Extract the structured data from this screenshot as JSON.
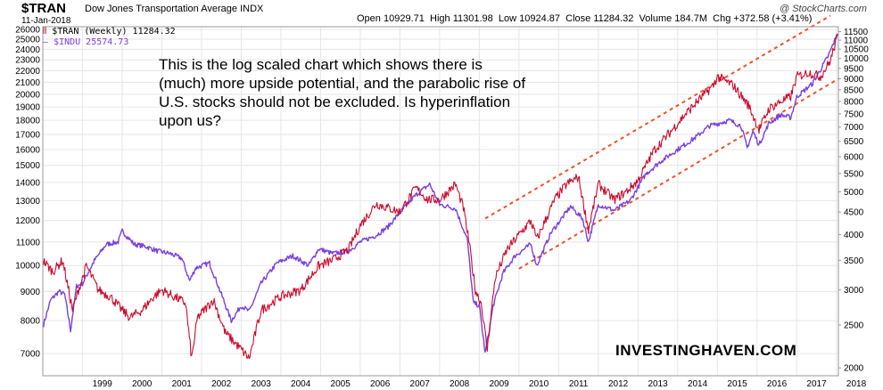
{
  "header": {
    "symbol": "$TRAN",
    "name": "Dow Jones Transportation Average INDX",
    "date": "11-Jan-2018",
    "quote": {
      "open_label": "Open",
      "open": "10929.71",
      "high_label": "High",
      "high": "11301.98",
      "low_label": "Low",
      "low": "10924.87",
      "close_label": "Close",
      "close": "11284.32",
      "volume_label": "Volume",
      "volume": "184.7M",
      "chg_label": "Chg",
      "chg": "+372.58 (+3.41%)"
    },
    "brand": "@ StockCharts.com"
  },
  "legend": {
    "tran": "$TRAN (Weekly) 11284.32",
    "indu": "$INDU 25574.73"
  },
  "annotation": "This is the log scaled chart which shows there is (much) more upside potential, and the parabolic rise of U.S. stocks should not be excluded. Is hyperinflation upon us?",
  "watermark": "INVESTINGHAVEN.COM",
  "colors": {
    "tran": "#cc0a2c",
    "indu": "#7a3fe0",
    "channel": "#ef5226",
    "grid": "#e6e6e6"
  },
  "chart_data": {
    "type": "line",
    "scale": "log",
    "grid": true,
    "x_ticks": [
      "1999",
      "2000",
      "2001",
      "2002",
      "2003",
      "2004",
      "2005",
      "2006",
      "2007",
      "2008",
      "2009",
      "2010",
      "2011",
      "2012",
      "2013",
      "2014",
      "2015",
      "2016",
      "2017",
      "2018"
    ],
    "xlim": [
      1998.0,
      2018.05
    ],
    "left_axis": {
      "ticks": [
        7000,
        8000,
        9000,
        10000,
        11000,
        12000,
        13000,
        14000,
        15000,
        16000,
        17000,
        18000,
        19000,
        20000,
        21000,
        22000,
        23000,
        24000,
        25000,
        26000
      ],
      "ylim": [
        6400,
        26300
      ]
    },
    "right_axis": {
      "ticks": [
        2000,
        2500,
        3000,
        3500,
        4000,
        4500,
        5000,
        5500,
        6000,
        6500,
        7000,
        7500,
        8000,
        8500,
        9000,
        9500,
        10000,
        10500,
        11000,
        11500
      ],
      "ylim": [
        1920,
        11800
      ]
    },
    "series": [
      {
        "name": "$INDU",
        "axis": "left",
        "x": [
          1998.0,
          1998.2,
          1998.4,
          1998.55,
          1998.7,
          1998.85,
          1999.0,
          1999.3,
          1999.6,
          1999.9,
          2000.0,
          2000.3,
          2000.6,
          2000.9,
          2001.2,
          2001.5,
          2001.7,
          2001.85,
          2002.2,
          2002.5,
          2002.75,
          2003.0,
          2003.2,
          2003.5,
          2003.9,
          2004.3,
          2004.7,
          2004.95,
          2005.3,
          2005.7,
          2006.0,
          2006.4,
          2006.7,
          2007.0,
          2007.4,
          2007.75,
          2008.0,
          2008.4,
          2008.7,
          2008.85,
          2009.0,
          2009.15,
          2009.35,
          2009.6,
          2009.9,
          2010.3,
          2010.45,
          2010.8,
          2011.3,
          2011.6,
          2011.75,
          2012.0,
          2012.4,
          2012.8,
          2013.2,
          2013.6,
          2014.0,
          2014.4,
          2014.8,
          2015.3,
          2015.6,
          2015.75,
          2015.9,
          2016.05,
          2016.3,
          2016.6,
          2016.85,
          2017.0,
          2017.4,
          2017.8,
          2018.03
        ],
        "y": [
          7800,
          8700,
          9000,
          8900,
          7700,
          9200,
          9300,
          10200,
          10900,
          11000,
          11500,
          10900,
          10800,
          10600,
          10500,
          10300,
          9400,
          9900,
          10100,
          8900,
          8000,
          8500,
          8300,
          9300,
          10100,
          10400,
          10000,
          10700,
          10500,
          10600,
          11000,
          11300,
          11700,
          12400,
          13300,
          13900,
          12800,
          12600,
          11100,
          8600,
          8500,
          7000,
          8500,
          9700,
          10400,
          10900,
          10000,
          11400,
          12700,
          12100,
          11000,
          12800,
          12500,
          13000,
          14500,
          15300,
          16000,
          16700,
          17600,
          18000,
          17600,
          16100,
          17200,
          16300,
          17800,
          18400,
          18200,
          19800,
          20900,
          23400,
          25574
        ]
      },
      {
        "name": "$TRAN",
        "axis": "right",
        "x": [
          1998.0,
          1998.25,
          1998.5,
          1998.75,
          1998.9,
          1999.1,
          1999.4,
          1999.7,
          2000.0,
          2000.2,
          2000.5,
          2000.8,
          2001.0,
          2001.3,
          2001.6,
          2001.75,
          2001.9,
          2002.3,
          2002.6,
          2002.8,
          2003.0,
          2003.2,
          2003.5,
          2004.0,
          2004.5,
          2004.95,
          2005.3,
          2005.7,
          2006.0,
          2006.4,
          2006.7,
          2007.0,
          2007.4,
          2007.7,
          2008.0,
          2008.4,
          2008.6,
          2008.75,
          2008.9,
          2009.05,
          2009.2,
          2009.4,
          2009.7,
          2010.0,
          2010.3,
          2010.45,
          2010.9,
          2011.2,
          2011.5,
          2011.75,
          2012.0,
          2012.4,
          2012.7,
          2013.0,
          2013.4,
          2013.8,
          2014.2,
          2014.5,
          2014.9,
          2015.0,
          2015.4,
          2015.8,
          2016.05,
          2016.3,
          2016.6,
          2016.85,
          2017.0,
          2017.3,
          2017.6,
          2017.85,
          2018.03
        ],
        "y": [
          3500,
          3300,
          3500,
          2700,
          3000,
          3400,
          3000,
          2900,
          2700,
          2600,
          2700,
          2900,
          3000,
          2900,
          2800,
          2100,
          2600,
          2850,
          2400,
          2300,
          2200,
          2100,
          2700,
          2900,
          3000,
          3400,
          3500,
          3700,
          4200,
          4700,
          4600,
          4500,
          5100,
          4800,
          4800,
          5200,
          4600,
          3800,
          3000,
          2800,
          2200,
          3200,
          3700,
          4000,
          4300,
          3900,
          4800,
          5200,
          5400,
          4100,
          5200,
          4800,
          5000,
          5300,
          6200,
          6800,
          7500,
          8000,
          8700,
          9100,
          8700,
          7800,
          6900,
          7700,
          8000,
          8200,
          9100,
          9300,
          9100,
          9900,
          11284
        ]
      }
    ],
    "channel": {
      "upper": {
        "x": [
          2009.15,
          2017.85
        ],
        "y_right": [
          4350,
          12500
        ]
      },
      "lower": {
        "x": [
          2010.0,
          2018.05
        ],
        "y_right": [
          3350,
          9000
        ]
      }
    }
  }
}
